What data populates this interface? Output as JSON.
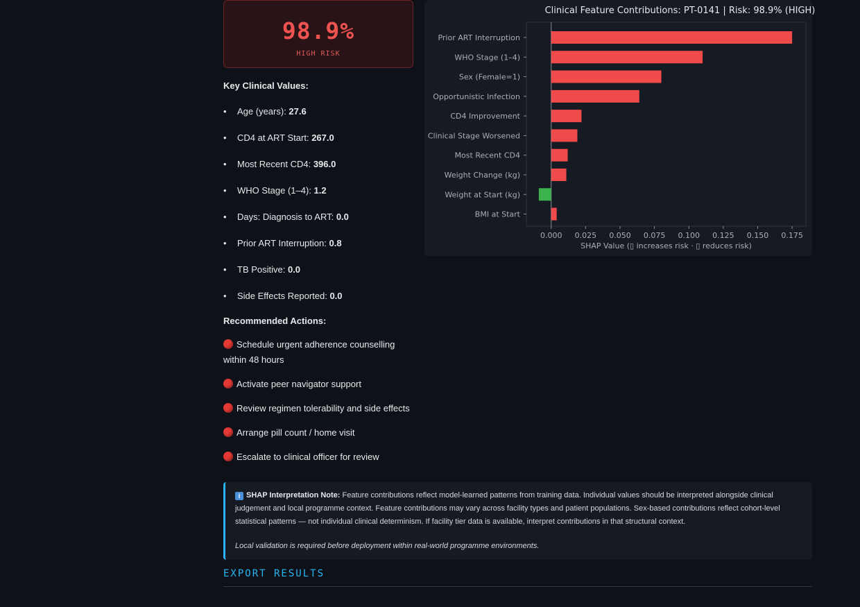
{
  "risk_card": {
    "value": "98.9%",
    "label": "HIGH RISK"
  },
  "key_values": {
    "heading": "Key Clinical Values:",
    "items": [
      {
        "label": "Age (years): ",
        "value": "27.6"
      },
      {
        "label": "CD4 at ART Start: ",
        "value": "267.0"
      },
      {
        "label": "Most Recent CD4: ",
        "value": "396.0"
      },
      {
        "label": "WHO Stage (1–4): ",
        "value": "1.2"
      },
      {
        "label": "Days: Diagnosis to ART: ",
        "value": "0.0"
      },
      {
        "label": "Prior ART Interruption: ",
        "value": "0.8"
      },
      {
        "label": "TB Positive: ",
        "value": "0.0"
      },
      {
        "label": "Side Effects Reported: ",
        "value": "0.0"
      }
    ]
  },
  "actions": {
    "heading": "Recommended Actions:",
    "items": [
      "Schedule urgent adherence counselling within 48 hours",
      "Activate peer navigator support",
      "Review regimen tolerability and side effects",
      "Arrange pill count / home visit",
      "Escalate to clinical officer for review"
    ]
  },
  "chart_data": {
    "type": "bar",
    "orientation": "horizontal",
    "title": "Clinical Feature Contributions: PT-0141 | Risk: 98.9% (HIGH)",
    "xlabel": "SHAP Value (▯ increases risk · ▯ reduces risk)",
    "ylabel": "",
    "xlim": [
      -0.018,
      0.185
    ],
    "xticks": [
      "0.000",
      "0.025",
      "0.050",
      "0.075",
      "0.100",
      "0.125",
      "0.150",
      "0.175"
    ],
    "categories": [
      "Prior ART Interruption",
      "WHO Stage (1–4)",
      "Sex (Female=1)",
      "Opportunistic Infection",
      "CD4 Improvement",
      "Clinical Stage Worsened",
      "Most Recent CD4",
      "Weight Change (kg)",
      "Weight at Start (kg)",
      "BMI at Start"
    ],
    "values": [
      0.175,
      0.11,
      0.08,
      0.064,
      0.022,
      0.019,
      0.012,
      0.011,
      -0.009,
      0.004
    ],
    "colors": {
      "positive": "#f04a4a",
      "negative": "#3cb44b"
    },
    "grid": false
  },
  "note": {
    "title": "SHAP Interpretation Note:",
    "body": " Feature contributions reflect model-learned patterns from training data. Individual values should be interpreted alongside clinical judgement and local programme context. Feature contributions may vary across facility types and patient populations. Sex-based contributions reflect cohort-level statistical patterns — not individual clinical determinism. If facility tier data is available, interpret contributions in that structural context.",
    "footer": "Local validation is required before deployment within real-world programme environments.",
    "icon": "info-icon"
  },
  "export": {
    "heading": "EXPORT RESULTS"
  }
}
